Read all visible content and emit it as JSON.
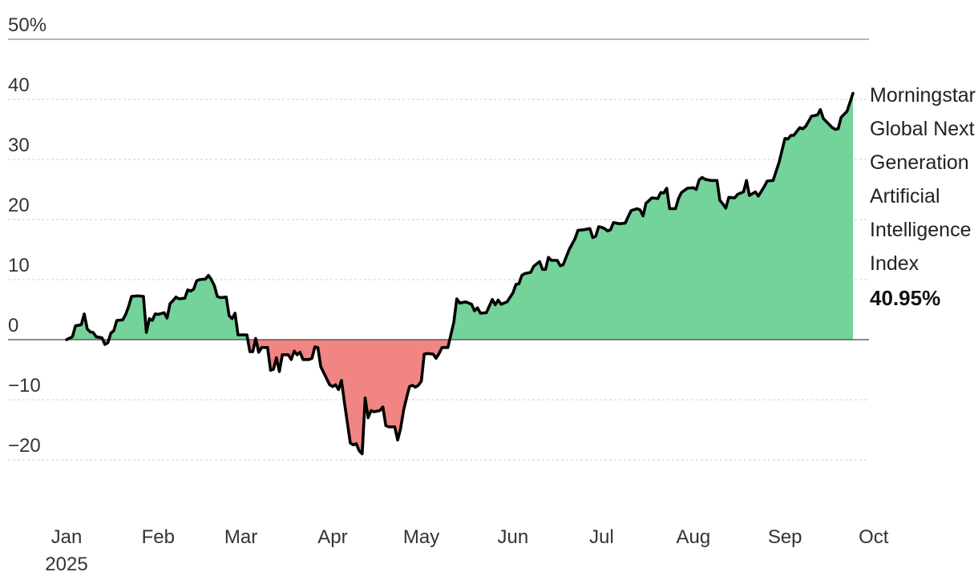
{
  "chart_data": {
    "type": "area",
    "title": "",
    "xlabel": "",
    "ylabel": "",
    "y_unit": "%",
    "ylim": [
      -25,
      50
    ],
    "y_ticks": [
      {
        "value": 50,
        "label": "50%"
      },
      {
        "value": 40,
        "label": "40"
      },
      {
        "value": 30,
        "label": "30"
      },
      {
        "value": 20,
        "label": "20"
      },
      {
        "value": 10,
        "label": "10"
      },
      {
        "value": 0,
        "label": "0"
      },
      {
        "value": -10,
        "label": "−10"
      },
      {
        "value": -20,
        "label": "−20"
      }
    ],
    "x_ticks": [
      {
        "date": "2025-01-01",
        "label": "Jan",
        "sublabel": "2025"
      },
      {
        "date": "2025-02-01",
        "label": "Feb"
      },
      {
        "date": "2025-03-01",
        "label": "Mar"
      },
      {
        "date": "2025-04-01",
        "label": "Apr"
      },
      {
        "date": "2025-05-01",
        "label": "May"
      },
      {
        "date": "2025-06-01",
        "label": "Jun"
      },
      {
        "date": "2025-07-01",
        "label": "Jul"
      },
      {
        "date": "2025-08-01",
        "label": "Aug"
      },
      {
        "date": "2025-09-01",
        "label": "Sep"
      },
      {
        "date": "2025-10-01",
        "label": "Oct"
      }
    ],
    "grid": true,
    "legend_position": "right-end",
    "colors": {
      "positive": "#74d39a",
      "negative": "#f08583",
      "line": "#000000",
      "grid": "#cfcfcf",
      "baseline": "#444444"
    },
    "series": [
      {
        "name": "Morningstar Global Next Generation Artificial Intelligence Index",
        "name_lines": [
          "Morningstar",
          "Global Next",
          "Generation",
          "Artificial",
          "Intelligence",
          "Index"
        ],
        "last_value_label": "40.95%",
        "points": [
          [
            "2025-01-01",
            0
          ],
          [
            "2025-01-03",
            0.5
          ],
          [
            "2025-01-04",
            2.3
          ],
          [
            "2025-01-06",
            2.5
          ],
          [
            "2025-01-07",
            4.3
          ],
          [
            "2025-01-08",
            1.8
          ],
          [
            "2025-01-09",
            1.3
          ],
          [
            "2025-01-10",
            1.2
          ],
          [
            "2025-01-11",
            0.5
          ],
          [
            "2025-01-13",
            0.3
          ],
          [
            "2025-01-14",
            -0.8
          ],
          [
            "2025-01-15",
            -0.5
          ],
          [
            "2025-01-16",
            1.1
          ],
          [
            "2025-01-17",
            1.5
          ],
          [
            "2025-01-18",
            3.2
          ],
          [
            "2025-01-20",
            3.3
          ],
          [
            "2025-01-21",
            4.2
          ],
          [
            "2025-01-22",
            5.5
          ],
          [
            "2025-01-23",
            7.2
          ],
          [
            "2025-01-25",
            7.3
          ],
          [
            "2025-01-27",
            7.2
          ],
          [
            "2025-01-28",
            1.2
          ],
          [
            "2025-01-29",
            3.5
          ],
          [
            "2025-01-30",
            3.2
          ],
          [
            "2025-01-31",
            4.3
          ],
          [
            "2025-02-01",
            4.2
          ],
          [
            "2025-02-03",
            4.5
          ],
          [
            "2025-02-04",
            3.6
          ],
          [
            "2025-02-05",
            6.0
          ],
          [
            "2025-02-06",
            6.5
          ],
          [
            "2025-02-07",
            7.1
          ],
          [
            "2025-02-08",
            6.8
          ],
          [
            "2025-02-10",
            6.9
          ],
          [
            "2025-02-11",
            8.3
          ],
          [
            "2025-02-12",
            8.1
          ],
          [
            "2025-02-13",
            8.4
          ],
          [
            "2025-02-14",
            9.8
          ],
          [
            "2025-02-15",
            10.0
          ],
          [
            "2025-02-17",
            10.1
          ],
          [
            "2025-02-18",
            10.7
          ],
          [
            "2025-02-19",
            10.0
          ],
          [
            "2025-02-20",
            9.0
          ],
          [
            "2025-02-21",
            7.2
          ],
          [
            "2025-02-22",
            7.0
          ],
          [
            "2025-02-24",
            7.1
          ],
          [
            "2025-02-25",
            4.0
          ],
          [
            "2025-02-26",
            3.5
          ],
          [
            "2025-02-27",
            4.4
          ],
          [
            "2025-02-28",
            0.8
          ],
          [
            "2025-03-01",
            0.8
          ],
          [
            "2025-03-03",
            0.8
          ],
          [
            "2025-03-04",
            -2.0
          ],
          [
            "2025-03-05",
            -2.0
          ],
          [
            "2025-03-06",
            0.2
          ],
          [
            "2025-03-07",
            -2.1
          ],
          [
            "2025-03-08",
            -1.3
          ],
          [
            "2025-03-10",
            -1.3
          ],
          [
            "2025-03-11",
            -5.1
          ],
          [
            "2025-03-12",
            -4.9
          ],
          [
            "2025-03-13",
            -3.0
          ],
          [
            "2025-03-14",
            -5.3
          ],
          [
            "2025-03-15",
            -2.5
          ],
          [
            "2025-03-17",
            -2.5
          ],
          [
            "2025-03-18",
            -3.3
          ],
          [
            "2025-03-19",
            -1.9
          ],
          [
            "2025-03-20",
            -2.5
          ],
          [
            "2025-03-21",
            -2.1
          ],
          [
            "2025-03-22",
            -3.3
          ],
          [
            "2025-03-24",
            -3.3
          ],
          [
            "2025-03-25",
            -3.1
          ],
          [
            "2025-03-26",
            -1.2
          ],
          [
            "2025-03-27",
            -1.3
          ],
          [
            "2025-03-28",
            -4.5
          ],
          [
            "2025-03-31",
            -7.5
          ],
          [
            "2025-04-01",
            -7.8
          ],
          [
            "2025-04-02",
            -7.5
          ],
          [
            "2025-04-03",
            -8.3
          ],
          [
            "2025-04-04",
            -6.8
          ],
          [
            "2025-04-05",
            -10.5
          ],
          [
            "2025-04-07",
            -17.2
          ],
          [
            "2025-04-08",
            -17.5
          ],
          [
            "2025-04-09",
            -17.3
          ],
          [
            "2025-04-10",
            -18.5
          ],
          [
            "2025-04-11",
            -19.0
          ],
          [
            "2025-04-12",
            -9.7
          ],
          [
            "2025-04-13",
            -13.0
          ],
          [
            "2025-04-14",
            -11.8
          ],
          [
            "2025-04-15",
            -12.0
          ],
          [
            "2025-04-17",
            -11.8
          ],
          [
            "2025-04-18",
            -11.2
          ],
          [
            "2025-04-19",
            -14.3
          ],
          [
            "2025-04-20",
            -14.5
          ],
          [
            "2025-04-22",
            -14.5
          ],
          [
            "2025-04-23",
            -16.7
          ],
          [
            "2025-04-24",
            -14.8
          ],
          [
            "2025-04-25",
            -11.8
          ],
          [
            "2025-04-26",
            -9.7
          ],
          [
            "2025-04-27",
            -7.8
          ],
          [
            "2025-04-28",
            -7.6
          ],
          [
            "2025-04-29",
            -7.9
          ],
          [
            "2025-04-30",
            -7.6
          ],
          [
            "2025-05-01",
            -6.9
          ],
          [
            "2025-05-02",
            -2.4
          ],
          [
            "2025-05-03",
            -2.3
          ],
          [
            "2025-05-05",
            -2.4
          ],
          [
            "2025-05-06",
            -3.1
          ],
          [
            "2025-05-07",
            -2.3
          ],
          [
            "2025-05-08",
            -1.3
          ],
          [
            "2025-05-10",
            -1.3
          ],
          [
            "2025-05-12",
            2.9
          ],
          [
            "2025-05-13",
            6.8
          ],
          [
            "2025-05-14",
            6.1
          ],
          [
            "2025-05-16",
            6.3
          ],
          [
            "2025-05-18",
            5.9
          ],
          [
            "2025-05-19",
            4.8
          ],
          [
            "2025-05-20",
            5.3
          ],
          [
            "2025-05-21",
            4.4
          ],
          [
            "2025-05-23",
            4.5
          ],
          [
            "2025-05-25",
            6.7
          ],
          [
            "2025-05-26",
            5.8
          ],
          [
            "2025-05-27",
            6.6
          ],
          [
            "2025-05-28",
            5.9
          ],
          [
            "2025-05-30",
            6.3
          ],
          [
            "2025-06-01",
            7.8
          ],
          [
            "2025-06-02",
            9.2
          ],
          [
            "2025-06-03",
            9.3
          ],
          [
            "2025-06-04",
            10.7
          ],
          [
            "2025-06-05",
            11.0
          ],
          [
            "2025-06-07",
            11.2
          ],
          [
            "2025-06-08",
            12.2
          ],
          [
            "2025-06-10",
            13.0
          ],
          [
            "2025-06-11",
            11.7
          ],
          [
            "2025-06-12",
            11.7
          ],
          [
            "2025-06-13",
            13.7
          ],
          [
            "2025-06-14",
            13.2
          ],
          [
            "2025-06-16",
            13.2
          ],
          [
            "2025-06-17",
            12.3
          ],
          [
            "2025-06-18",
            12.5
          ],
          [
            "2025-06-20",
            15.0
          ],
          [
            "2025-06-22",
            16.8
          ],
          [
            "2025-06-23",
            18.2
          ],
          [
            "2025-06-25",
            18.3
          ],
          [
            "2025-06-27",
            18.5
          ],
          [
            "2025-06-28",
            17.0
          ],
          [
            "2025-06-29",
            17.2
          ],
          [
            "2025-06-30",
            18.8
          ],
          [
            "2025-07-01",
            18.7
          ],
          [
            "2025-07-02",
            18.5
          ],
          [
            "2025-07-03",
            18.1
          ],
          [
            "2025-07-04",
            18.3
          ],
          [
            "2025-07-05",
            19.5
          ],
          [
            "2025-07-07",
            19.3
          ],
          [
            "2025-07-09",
            19.4
          ],
          [
            "2025-07-10",
            20.5
          ],
          [
            "2025-07-11",
            21.5
          ],
          [
            "2025-07-13",
            21.8
          ],
          [
            "2025-07-14",
            21.6
          ],
          [
            "2025-07-15",
            20.6
          ],
          [
            "2025-07-16",
            22.7
          ],
          [
            "2025-07-18",
            23.6
          ],
          [
            "2025-07-20",
            23.5
          ],
          [
            "2025-07-21",
            24.5
          ],
          [
            "2025-07-22",
            24.4
          ],
          [
            "2025-07-23",
            25.2
          ],
          [
            "2025-07-24",
            21.8
          ],
          [
            "2025-07-26",
            21.8
          ],
          [
            "2025-07-27",
            23.5
          ],
          [
            "2025-07-28",
            24.5
          ],
          [
            "2025-07-30",
            25.2
          ],
          [
            "2025-08-01",
            25.3
          ],
          [
            "2025-08-02",
            25.0
          ],
          [
            "2025-08-03",
            26.6
          ],
          [
            "2025-08-04",
            27.0
          ],
          [
            "2025-08-05",
            26.7
          ],
          [
            "2025-08-07",
            26.5
          ],
          [
            "2025-08-09",
            26.5
          ],
          [
            "2025-08-10",
            23.2
          ],
          [
            "2025-08-11",
            22.6
          ],
          [
            "2025-08-12",
            21.9
          ],
          [
            "2025-08-13",
            23.7
          ],
          [
            "2025-08-15",
            23.6
          ],
          [
            "2025-08-16",
            24.2
          ],
          [
            "2025-08-18",
            24.6
          ],
          [
            "2025-08-19",
            26.5
          ],
          [
            "2025-08-20",
            24.0
          ],
          [
            "2025-08-22",
            24.6
          ],
          [
            "2025-08-23",
            23.9
          ],
          [
            "2025-08-24",
            24.7
          ],
          [
            "2025-08-25",
            25.5
          ],
          [
            "2025-08-26",
            26.4
          ],
          [
            "2025-08-28",
            26.5
          ],
          [
            "2025-08-30",
            29.5
          ],
          [
            "2025-09-01",
            33.5
          ],
          [
            "2025-09-02",
            33.4
          ],
          [
            "2025-09-03",
            34.0
          ],
          [
            "2025-09-04",
            34.0
          ],
          [
            "2025-09-06",
            35.3
          ],
          [
            "2025-09-07",
            35.1
          ],
          [
            "2025-09-08",
            35.5
          ],
          [
            "2025-09-10",
            37.2
          ],
          [
            "2025-09-12",
            37.4
          ],
          [
            "2025-09-13",
            38.3
          ],
          [
            "2025-09-14",
            36.8
          ],
          [
            "2025-09-15",
            36.3
          ],
          [
            "2025-09-17",
            35.3
          ],
          [
            "2025-09-18",
            35.0
          ],
          [
            "2025-09-19",
            35.1
          ],
          [
            "2025-09-20",
            37.0
          ],
          [
            "2025-09-22",
            38.0
          ],
          [
            "2025-09-23",
            39.5
          ],
          [
            "2025-09-24",
            41.0
          ]
        ]
      }
    ]
  }
}
